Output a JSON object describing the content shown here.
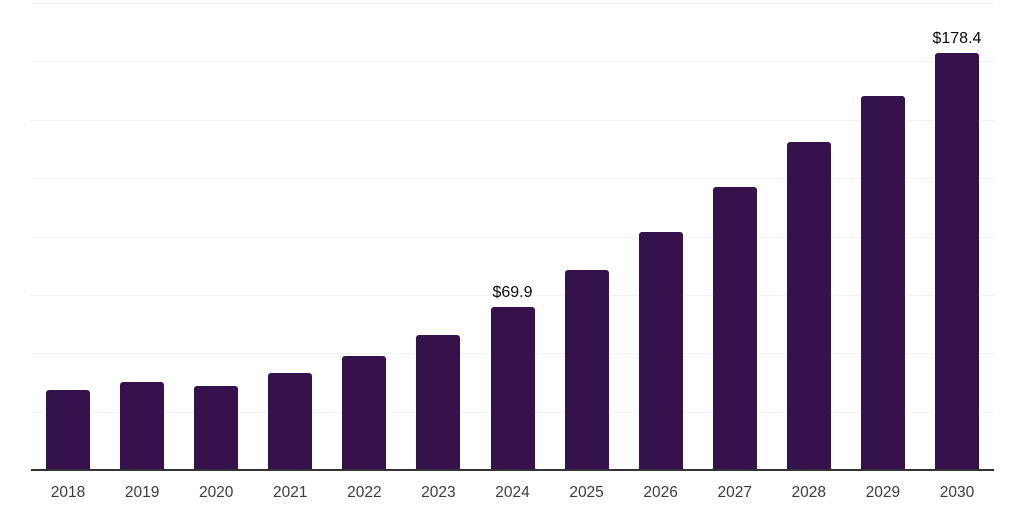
{
  "chart_data": {
    "type": "bar",
    "title": "",
    "xlabel": "",
    "ylabel": "",
    "categories": [
      "2018",
      "2019",
      "2020",
      "2021",
      "2022",
      "2023",
      "2024",
      "2025",
      "2026",
      "2027",
      "2028",
      "2029",
      "2030"
    ],
    "values": [
      34.3,
      37.7,
      36.0,
      41.5,
      48.8,
      57.8,
      69.9,
      85.7,
      101.9,
      121.2,
      140.5,
      160.2,
      178.4
    ],
    "value_labels": [
      "",
      "",
      "",
      "",
      "",
      "",
      "$69.9",
      "",
      "",
      "",
      "",
      "",
      "$178.4"
    ],
    "value_prefix": "$",
    "ylim": [
      0,
      200
    ],
    "gridline_step": 25,
    "grid": "horizontal",
    "legend": "none",
    "colors": {
      "bar": "#35124B",
      "gridline": "#F2F2F4",
      "axis_line": "#333333",
      "tick_label": "#3C3C3C",
      "value_label": "#0A0A0A",
      "background": "#FFFFFF"
    }
  }
}
